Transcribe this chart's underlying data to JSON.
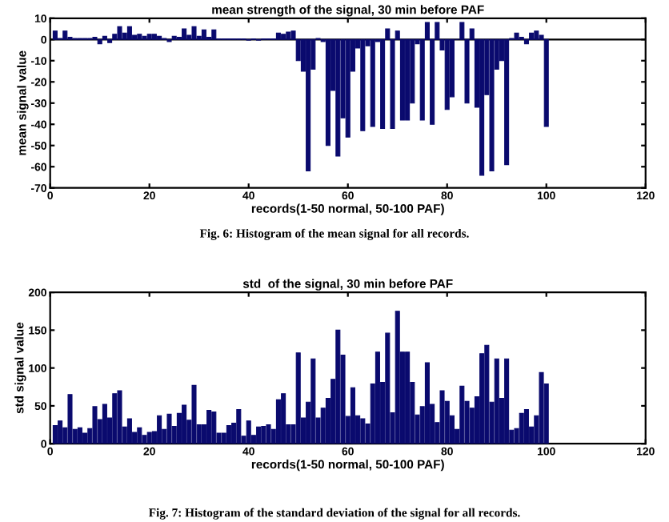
{
  "chart_data": [
    {
      "type": "bar",
      "title": "mean strength of the signal, 30 min before PAF",
      "xlabel": "records(1-50 normal, 50-100 PAF)",
      "ylabel": "mean signal value",
      "annotations": [
        "Fig. 6: Histogram of the mean signal for all records."
      ],
      "x": [
        1,
        2,
        3,
        4,
        5,
        6,
        7,
        8,
        9,
        10,
        11,
        12,
        13,
        14,
        15,
        16,
        17,
        18,
        19,
        20,
        21,
        22,
        23,
        24,
        25,
        26,
        27,
        28,
        29,
        30,
        31,
        32,
        33,
        34,
        35,
        36,
        37,
        38,
        39,
        40,
        41,
        42,
        43,
        44,
        45,
        46,
        47,
        48,
        49,
        50,
        51,
        52,
        53,
        54,
        55,
        56,
        57,
        58,
        59,
        60,
        61,
        62,
        63,
        64,
        65,
        66,
        67,
        68,
        69,
        70,
        71,
        72,
        73,
        74,
        75,
        76,
        77,
        78,
        79,
        80,
        81,
        82,
        83,
        84,
        85,
        86,
        87,
        88,
        89,
        90,
        91,
        92,
        93,
        94,
        95,
        96,
        97,
        98,
        99,
        100
      ],
      "values": [
        4,
        0.5,
        4,
        1,
        0.5,
        0.5,
        0.5,
        0.5,
        1,
        -2,
        1.5,
        -1.5,
        2.5,
        6,
        3,
        6,
        2,
        2.5,
        1.5,
        2.5,
        2.5,
        1.5,
        0.5,
        -1,
        1.5,
        1,
        5,
        2,
        6,
        1.5,
        4.5,
        1,
        4.5,
        0.3,
        0.3,
        0.3,
        0.3,
        0.3,
        0.3,
        -0.3,
        0.3,
        -0.3,
        0.3,
        0.3,
        0.3,
        3,
        2.5,
        3.5,
        4,
        -10,
        -15,
        -62,
        -14,
        0.5,
        -1,
        -50,
        -24,
        -55,
        -37,
        -46,
        -15,
        -4,
        -43,
        -3,
        -41,
        -1,
        -42,
        5,
        -42,
        4,
        -38,
        -38,
        -30,
        -2,
        -38,
        8,
        -40,
        8,
        -5,
        -33,
        -27,
        0,
        8,
        -30,
        5,
        -32,
        -64,
        -26,
        -62,
        -14,
        -10,
        -59,
        0.5,
        3,
        1,
        -2,
        3,
        4,
        2,
        -41
      ],
      "color": "#0a0a6e",
      "xlim": [
        0,
        120
      ],
      "xticks": [
        0,
        20,
        40,
        60,
        80,
        100,
        120
      ],
      "ylim": [
        -70,
        10
      ],
      "yticks": [
        -70,
        -60,
        -50,
        -40,
        -30,
        -20,
        -10,
        0,
        10
      ],
      "ref_lines": [
        {
          "axis": "y",
          "value": 0
        }
      ],
      "grid": false
    },
    {
      "type": "bar",
      "title": "std  of the signal, 30 min before PAF",
      "xlabel": "records(1-50 normal, 50-100 PAF)",
      "ylabel": "std signal value",
      "annotations": [
        "Fig. 7: Histogram of the standard deviation of the signal for all records."
      ],
      "x": [
        1,
        2,
        3,
        4,
        5,
        6,
        7,
        8,
        9,
        10,
        11,
        12,
        13,
        14,
        15,
        16,
        17,
        18,
        19,
        20,
        21,
        22,
        23,
        24,
        25,
        26,
        27,
        28,
        29,
        30,
        31,
        32,
        33,
        34,
        35,
        36,
        37,
        38,
        39,
        40,
        41,
        42,
        43,
        44,
        45,
        46,
        47,
        48,
        49,
        50,
        51,
        52,
        53,
        54,
        55,
        56,
        57,
        58,
        59,
        60,
        61,
        62,
        63,
        64,
        65,
        66,
        67,
        68,
        69,
        70,
        71,
        72,
        73,
        74,
        75,
        76,
        77,
        78,
        79,
        80,
        81,
        82,
        83,
        84,
        85,
        86,
        87,
        88,
        89,
        90,
        91,
        92,
        93,
        94,
        95,
        96,
        97,
        98,
        99,
        100
      ],
      "values": [
        24,
        30,
        21,
        65,
        19,
        21,
        14,
        20,
        49,
        32,
        52,
        34,
        66,
        70,
        22,
        33,
        15,
        21,
        11,
        15,
        16,
        37,
        19,
        39,
        23,
        40,
        51,
        31,
        77,
        25,
        25,
        44,
        42,
        14,
        14,
        24,
        27,
        45,
        10,
        30,
        11,
        22,
        23,
        25,
        19,
        58,
        66,
        25,
        25,
        120,
        34,
        55,
        112,
        34,
        47,
        60,
        85,
        150,
        117,
        36,
        74,
        37,
        33,
        26,
        79,
        121,
        81,
        146,
        41,
        175,
        121,
        121,
        81,
        38,
        49,
        107,
        52,
        28,
        70,
        56,
        37,
        19,
        76,
        56,
        47,
        62,
        119,
        130,
        55,
        112,
        60,
        112,
        18,
        20,
        40,
        45,
        22,
        37,
        94,
        79
      ],
      "color": "#0a0a6e",
      "xlim": [
        0,
        120
      ],
      "xticks": [
        0,
        20,
        40,
        60,
        80,
        100,
        120
      ],
      "ylim": [
        0,
        200
      ],
      "yticks": [
        0,
        50,
        100,
        150,
        200
      ],
      "grid": false
    }
  ]
}
